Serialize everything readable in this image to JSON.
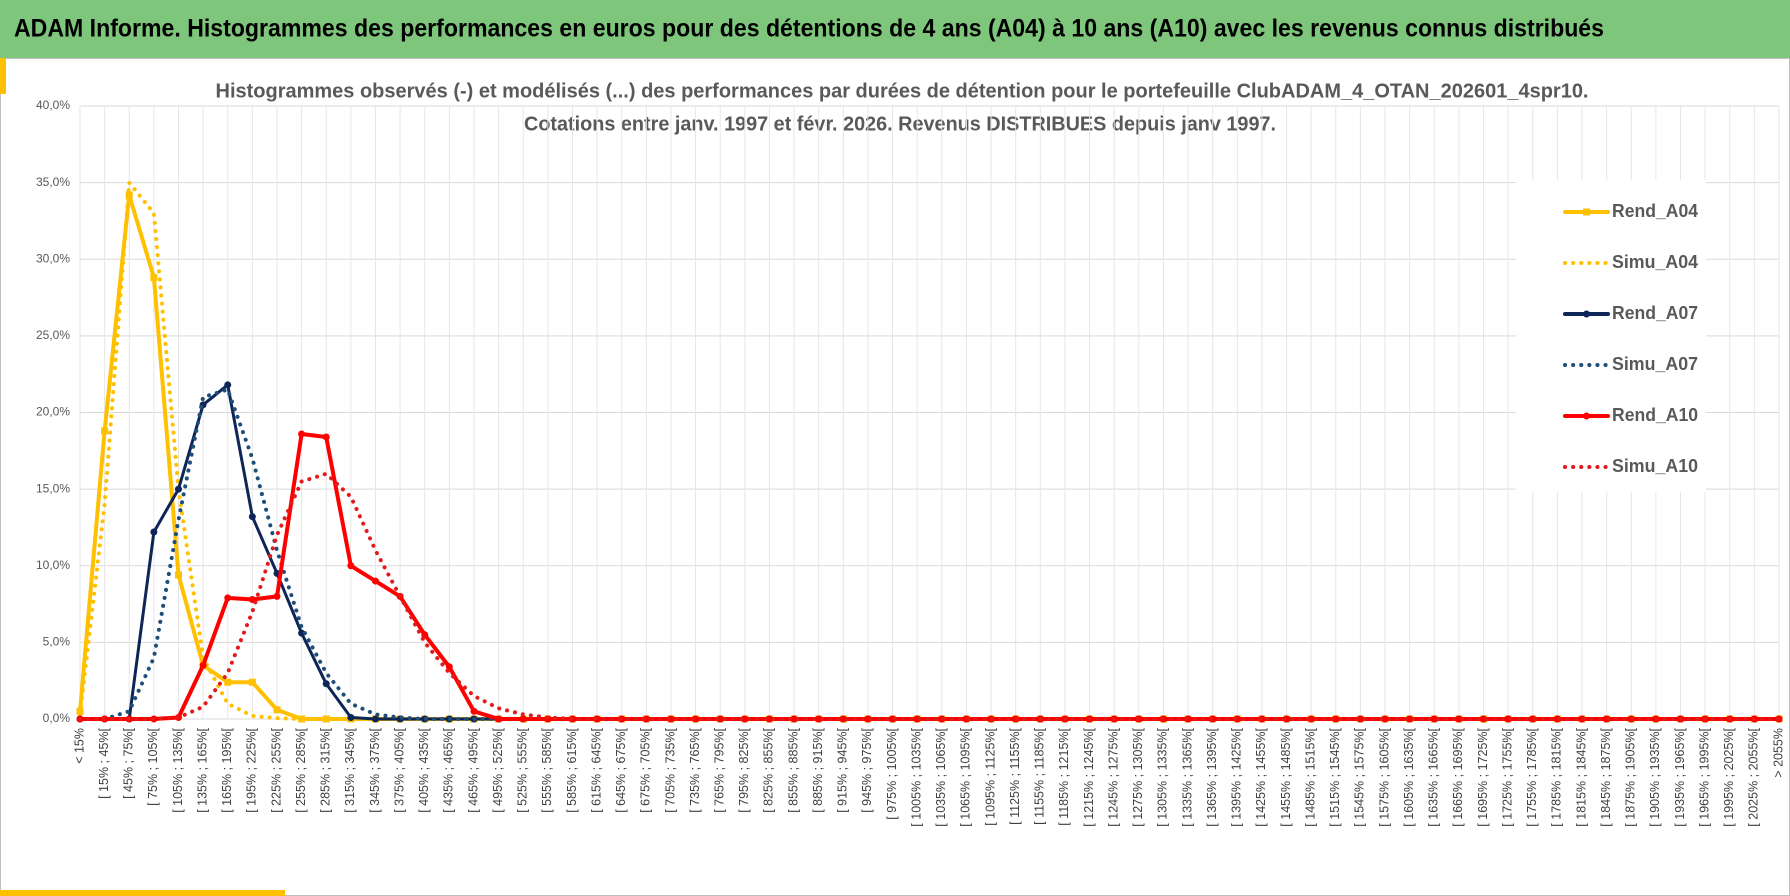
{
  "header": {
    "title": "ADAM Informe. Histogrammes des performances en euros pour des détentions de 4 ans (A04) à 10 ans (A10) avec les revenus connus distribués"
  },
  "chart_data": {
    "type": "line",
    "title": "Histogrammes observés (-) et modélisés (...) des performances  par durées de détention pour  le portefeuille ClubADAM_4_OTAN_202601_4spr10.",
    "subtitle": "Cotations  entre janv. 1997 et févr. 2026. Revenus DISTRIBUES depuis janv 1997.",
    "categories": [
      "< 15%",
      "[ 15% ; 45%[",
      "[ 45% ; 75%[",
      "[ 75% ; 105%[",
      "[ 105% ; 135%[",
      "[ 135% ; 165%[",
      "[ 165% ; 195%[",
      "[ 195% ; 225%[",
      "[ 225% ; 255%[",
      "[ 255% ; 285%[",
      "[ 285% ; 315%[",
      "[ 315% ; 345%[",
      "[ 345% ; 375%[",
      "[ 375% ; 405%[",
      "[ 405% ; 435%[",
      "[ 435% ; 465%[",
      "[ 465% ; 495%[",
      "[ 495% ; 525%[",
      "[ 525% ; 555%[",
      "[ 555% ; 585%[",
      "[ 585% ; 615%[",
      "[ 615% ; 645%[",
      "[ 645% ; 675%[",
      "[ 675% ; 705%[",
      "[ 705% ; 735%[",
      "[ 735% ; 765%[",
      "[ 765% ; 795%[",
      "[ 795% ; 825%[",
      "[ 825% ; 855%[",
      "[ 855% ; 885%[",
      "[ 885% ; 915%[",
      "[ 915% ; 945%[",
      "[ 945% ; 975%[",
      "[ 975% ; 1005%[",
      "[ 1005% ; 1035%[",
      "[ 1035% ; 1065%[",
      "[ 1065% ; 1095%[",
      "[ 1095% ; 1125%[",
      "[ 1125% ; 1155%[",
      "[ 1155% ; 1185%[",
      "[ 1185% ; 1215%[",
      "[ 1215% ; 1245%[",
      "[ 1245% ; 1275%[",
      "[ 1275% ; 1305%[",
      "[ 1305% ; 1335%[",
      "[ 1335% ; 1365%[",
      "[ 1365% ; 1395%[",
      "[ 1395% ; 1425%[",
      "[ 1425% ; 1455%[",
      "[ 1455% ; 1485%[",
      "[ 1485% ; 1515%[",
      "[ 1515% ; 1545%[",
      "[ 1545% ; 1575%[",
      "[ 1575% ; 1605%[",
      "[ 1605% ; 1635%[",
      "[ 1635% ; 1665%[",
      "[ 1665% ; 1695%[",
      "[ 1695% ; 1725%[",
      "[ 1725% ; 1755%[",
      "[ 1755% ; 1785%[",
      "[ 1785% ; 1815%[",
      "[ 1815% ; 1845%[",
      "[ 1845% ; 1875%[",
      "[ 1875% ; 1905%[",
      "[ 1905% ; 1935%[",
      "[ 1935% ; 1965%[",
      "[ 1965% ; 1995%[",
      "[ 1995% ; 2025%[",
      "[ 2025% ; 2055%[",
      "> 2055%"
    ],
    "series": [
      {
        "name": "Rend_A04",
        "color": "#ffc000",
        "dash": "solid",
        "marker": "square",
        "values": [
          0.5,
          18.8,
          34.2,
          28.8,
          9.4,
          3.5,
          2.4,
          2.4,
          0.6,
          0,
          0,
          0,
          0,
          0,
          0,
          0,
          0,
          0,
          0,
          0,
          0,
          0,
          0,
          0,
          0,
          0,
          0,
          0,
          0,
          0,
          0,
          0,
          0,
          0,
          0,
          0,
          0,
          0,
          0,
          0,
          0,
          0,
          0,
          0,
          0,
          0,
          0,
          0,
          0,
          0,
          0,
          0,
          0,
          0,
          0,
          0,
          0,
          0,
          0,
          0,
          0,
          0,
          0,
          0,
          0,
          0,
          0,
          0,
          0,
          0
        ]
      },
      {
        "name": "Simu_A04",
        "color": "#ffc000",
        "dash": "dotted",
        "marker": "none",
        "values": [
          0.3,
          14,
          35,
          33,
          15,
          4,
          1,
          0.2,
          0.05,
          0,
          0,
          0,
          0,
          0,
          0,
          0,
          0,
          0,
          0,
          0,
          0,
          0,
          0,
          0,
          0,
          0,
          0,
          0,
          0,
          0,
          0,
          0,
          0,
          0,
          0,
          0,
          0,
          0,
          0,
          0,
          0,
          0,
          0,
          0,
          0,
          0,
          0,
          0,
          0,
          0,
          0,
          0,
          0,
          0,
          0,
          0,
          0,
          0,
          0,
          0,
          0,
          0,
          0,
          0,
          0,
          0,
          0,
          0,
          0,
          0
        ]
      },
      {
        "name": "Rend_A07",
        "color": "#0d2557",
        "dash": "solid",
        "marker": "circle",
        "values": [
          0,
          0,
          0,
          12.2,
          15,
          20.5,
          21.8,
          13.2,
          9.5,
          5.6,
          2.3,
          0.1,
          0,
          0,
          0,
          0,
          0,
          0,
          0,
          0,
          0,
          0,
          0,
          0,
          0,
          0,
          0,
          0,
          0,
          0,
          0,
          0,
          0,
          0,
          0,
          0,
          0,
          0,
          0,
          0,
          0,
          0,
          0,
          0,
          0,
          0,
          0,
          0,
          0,
          0,
          0,
          0,
          0,
          0,
          0,
          0,
          0,
          0,
          0,
          0,
          0,
          0,
          0,
          0,
          0,
          0,
          0,
          0,
          0,
          0
        ]
      },
      {
        "name": "Simu_A07",
        "color": "#1f4e79",
        "dash": "dotted",
        "marker": "none",
        "values": [
          0,
          0,
          0.5,
          4,
          13,
          21,
          21.5,
          17,
          11,
          6,
          3,
          1,
          0.3,
          0.1,
          0,
          0,
          0,
          0,
          0,
          0,
          0,
          0,
          0,
          0,
          0,
          0,
          0,
          0,
          0,
          0,
          0,
          0,
          0,
          0,
          0,
          0,
          0,
          0,
          0,
          0,
          0,
          0,
          0,
          0,
          0,
          0,
          0,
          0,
          0,
          0,
          0,
          0,
          0,
          0,
          0,
          0,
          0,
          0,
          0,
          0,
          0,
          0,
          0,
          0,
          0,
          0,
          0,
          0,
          0,
          0
        ]
      },
      {
        "name": "Rend_A10",
        "color": "#ff0000",
        "dash": "solid",
        "marker": "circle",
        "values": [
          0,
          0,
          0,
          0,
          0.1,
          3.5,
          7.9,
          7.8,
          8,
          18.6,
          18.4,
          10,
          9,
          8,
          5.5,
          3.4,
          0.5,
          0,
          0,
          0,
          0,
          0,
          0,
          0,
          0,
          0,
          0,
          0,
          0,
          0,
          0,
          0,
          0,
          0,
          0,
          0,
          0,
          0,
          0,
          0,
          0,
          0,
          0,
          0,
          0,
          0,
          0,
          0,
          0,
          0,
          0,
          0,
          0,
          0,
          0,
          0,
          0,
          0,
          0,
          0,
          0,
          0,
          0,
          0,
          0,
          0,
          0,
          0,
          0,
          0
        ]
      },
      {
        "name": "Simu_A10",
        "color": "#e31a1c",
        "dash": "dotted",
        "marker": "none",
        "values": [
          0,
          0,
          0,
          0,
          0.1,
          0.8,
          3,
          7,
          12,
          15.5,
          16,
          14.5,
          11,
          8,
          5,
          3,
          1.5,
          0.7,
          0.3,
          0.1,
          0,
          0,
          0,
          0,
          0,
          0,
          0,
          0,
          0,
          0,
          0,
          0,
          0,
          0,
          0,
          0,
          0,
          0,
          0,
          0,
          0,
          0,
          0,
          0,
          0,
          0,
          0,
          0,
          0,
          0,
          0,
          0,
          0,
          0,
          0,
          0,
          0,
          0,
          0,
          0,
          0,
          0,
          0,
          0,
          0,
          0,
          0,
          0,
          0,
          0
        ]
      }
    ],
    "ylim": [
      0,
      40
    ],
    "yticks": [
      {
        "value": 0,
        "label": "0,0%"
      },
      {
        "value": 5,
        "label": "5,0%"
      },
      {
        "value": 10,
        "label": "10,0%"
      },
      {
        "value": 15,
        "label": "15,0%"
      },
      {
        "value": 20,
        "label": "20,0%"
      },
      {
        "value": 25,
        "label": "25,0%"
      },
      {
        "value": 30,
        "label": "30,0%"
      },
      {
        "value": 35,
        "label": "35,0%"
      },
      {
        "value": 40,
        "label": "40,0%"
      }
    ],
    "grid": true,
    "legend": "right"
  }
}
